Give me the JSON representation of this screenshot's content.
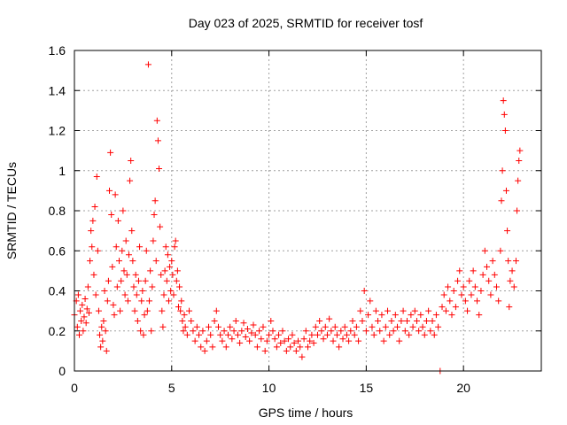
{
  "chart_data": {
    "type": "scatter",
    "title": "Day 023 of 2025, SRMTID for receiver tosf",
    "xlabel": "GPS time / hours",
    "ylabel": "SRMTID / TECUs",
    "xlim": [
      0,
      24
    ],
    "ylim": [
      0,
      1.6
    ],
    "xticks": [
      "0",
      "5",
      "10",
      "15",
      "20"
    ],
    "yticks": [
      "0",
      "0.2",
      "0.4",
      "0.6",
      "0.8",
      "1",
      "1.2",
      "1.4",
      "1.6"
    ],
    "grid": true,
    "marker": "+",
    "color": "#ff0000",
    "series": [
      {
        "name": "SRMTID",
        "points": [
          [
            0.0,
            0.28
          ],
          [
            0.1,
            0.35
          ],
          [
            0.15,
            0.22
          ],
          [
            0.2,
            0.38
          ],
          [
            0.25,
            0.18
          ],
          [
            0.3,
            0.3
          ],
          [
            0.35,
            0.25
          ],
          [
            0.4,
            0.33
          ],
          [
            0.45,
            0.2
          ],
          [
            0.5,
            0.27
          ],
          [
            0.55,
            0.36
          ],
          [
            0.6,
            0.24
          ],
          [
            0.65,
            0.31
          ],
          [
            0.7,
            0.42
          ],
          [
            0.75,
            0.29
          ],
          [
            0.8,
            0.55
          ],
          [
            0.85,
            0.7
          ],
          [
            0.9,
            0.62
          ],
          [
            0.95,
            0.75
          ],
          [
            1.0,
            0.48
          ],
          [
            1.05,
            0.82
          ],
          [
            1.1,
            0.38
          ],
          [
            1.15,
            0.97
          ],
          [
            1.2,
            0.6
          ],
          [
            1.25,
            0.3
          ],
          [
            1.3,
            0.18
          ],
          [
            1.35,
            0.12
          ],
          [
            1.4,
            0.22
          ],
          [
            1.45,
            0.15
          ],
          [
            1.5,
            0.25
          ],
          [
            1.55,
            0.4
          ],
          [
            1.6,
            0.2
          ],
          [
            1.65,
            0.1
          ],
          [
            1.7,
            0.35
          ],
          [
            1.75,
            0.45
          ],
          [
            1.8,
            0.9
          ],
          [
            1.85,
            1.09
          ],
          [
            1.9,
            0.78
          ],
          [
            1.95,
            0.52
          ],
          [
            2.0,
            0.33
          ],
          [
            2.05,
            0.28
          ],
          [
            2.1,
            0.88
          ],
          [
            2.15,
            0.62
          ],
          [
            2.2,
            0.42
          ],
          [
            2.25,
            0.75
          ],
          [
            2.3,
            0.55
          ],
          [
            2.35,
            0.3
          ],
          [
            2.4,
            0.45
          ],
          [
            2.45,
            0.6
          ],
          [
            2.5,
            0.8
          ],
          [
            2.55,
            0.5
          ],
          [
            2.6,
            0.38
          ],
          [
            2.65,
            0.65
          ],
          [
            2.7,
            0.48
          ],
          [
            2.75,
            0.35
          ],
          [
            2.8,
            0.58
          ],
          [
            2.85,
            0.95
          ],
          [
            2.9,
            1.05
          ],
          [
            2.95,
            0.7
          ],
          [
            3.0,
            0.55
          ],
          [
            3.05,
            0.42
          ],
          [
            3.1,
            0.3
          ],
          [
            3.15,
            0.48
          ],
          [
            3.2,
            0.38
          ],
          [
            3.25,
            0.25
          ],
          [
            3.3,
            0.45
          ],
          [
            3.35,
            0.62
          ],
          [
            3.4,
            0.2
          ],
          [
            3.45,
            0.35
          ],
          [
            3.5,
            0.4
          ],
          [
            3.55,
            0.18
          ],
          [
            3.6,
            0.28
          ],
          [
            3.65,
            0.45
          ],
          [
            3.7,
            0.6
          ],
          [
            3.75,
            0.3
          ],
          [
            3.8,
            1.53
          ],
          [
            3.85,
            0.35
          ],
          [
            3.9,
            0.5
          ],
          [
            3.95,
            0.2
          ],
          [
            4.0,
            0.42
          ],
          [
            4.05,
            0.65
          ],
          [
            4.1,
            0.78
          ],
          [
            4.15,
            0.85
          ],
          [
            4.2,
            0.55
          ],
          [
            4.25,
            1.25
          ],
          [
            4.3,
            1.15
          ],
          [
            4.35,
            1.01
          ],
          [
            4.4,
            0.72
          ],
          [
            4.45,
            0.48
          ],
          [
            4.5,
            0.3
          ],
          [
            4.55,
            0.22
          ],
          [
            4.6,
            0.38
          ],
          [
            4.65,
            0.5
          ],
          [
            4.7,
            0.62
          ],
          [
            4.75,
            0.45
          ],
          [
            4.8,
            0.58
          ],
          [
            4.85,
            0.35
          ],
          [
            4.9,
            0.52
          ],
          [
            4.95,
            0.4
          ],
          [
            5.0,
            0.55
          ],
          [
            5.05,
            0.48
          ],
          [
            5.1,
            0.38
          ],
          [
            5.15,
            0.62
          ],
          [
            5.2,
            0.65
          ],
          [
            5.25,
            0.45
          ],
          [
            5.3,
            0.5
          ],
          [
            5.35,
            0.32
          ],
          [
            5.4,
            0.42
          ],
          [
            5.45,
            0.3
          ],
          [
            5.5,
            0.35
          ],
          [
            5.55,
            0.25
          ],
          [
            5.6,
            0.2
          ],
          [
            5.65,
            0.28
          ],
          [
            5.7,
            0.22
          ],
          [
            5.8,
            0.18
          ],
          [
            5.9,
            0.3
          ],
          [
            6.0,
            0.25
          ],
          [
            6.1,
            0.2
          ],
          [
            6.2,
            0.15
          ],
          [
            6.3,
            0.22
          ],
          [
            6.4,
            0.18
          ],
          [
            6.5,
            0.12
          ],
          [
            6.6,
            0.2
          ],
          [
            6.7,
            0.1
          ],
          [
            6.8,
            0.15
          ],
          [
            6.9,
            0.22
          ],
          [
            7.0,
            0.18
          ],
          [
            7.1,
            0.12
          ],
          [
            7.2,
            0.25
          ],
          [
            7.3,
            0.3
          ],
          [
            7.4,
            0.22
          ],
          [
            7.5,
            0.18
          ],
          [
            7.6,
            0.15
          ],
          [
            7.7,
            0.2
          ],
          [
            7.8,
            0.12
          ],
          [
            7.9,
            0.18
          ],
          [
            8.0,
            0.22
          ],
          [
            8.1,
            0.16
          ],
          [
            8.2,
            0.2
          ],
          [
            8.3,
            0.25
          ],
          [
            8.4,
            0.18
          ],
          [
            8.5,
            0.14
          ],
          [
            8.6,
            0.2
          ],
          [
            8.7,
            0.24
          ],
          [
            8.8,
            0.17
          ],
          [
            8.9,
            0.21
          ],
          [
            9.0,
            0.15
          ],
          [
            9.1,
            0.19
          ],
          [
            9.2,
            0.23
          ],
          [
            9.3,
            0.18
          ],
          [
            9.4,
            0.12
          ],
          [
            9.5,
            0.2
          ],
          [
            9.6,
            0.16
          ],
          [
            9.7,
            0.22
          ],
          [
            9.8,
            0.1
          ],
          [
            9.9,
            0.15
          ],
          [
            10.0,
            0.18
          ],
          [
            10.1,
            0.25
          ],
          [
            10.2,
            0.2
          ],
          [
            10.3,
            0.16
          ],
          [
            10.4,
            0.12
          ],
          [
            10.5,
            0.18
          ],
          [
            10.6,
            0.14
          ],
          [
            10.7,
            0.2
          ],
          [
            10.8,
            0.15
          ],
          [
            10.9,
            0.1
          ],
          [
            11.0,
            0.16
          ],
          [
            11.1,
            0.12
          ],
          [
            11.2,
            0.18
          ],
          [
            11.3,
            0.14
          ],
          [
            11.4,
            0.1
          ],
          [
            11.5,
            0.15
          ],
          [
            11.6,
            0.12
          ],
          [
            11.7,
            0.07
          ],
          [
            11.8,
            0.16
          ],
          [
            11.9,
            0.2
          ],
          [
            12.0,
            0.12
          ],
          [
            12.1,
            0.15
          ],
          [
            12.2,
            0.18
          ],
          [
            12.3,
            0.14
          ],
          [
            12.4,
            0.22
          ],
          [
            12.5,
            0.18
          ],
          [
            12.6,
            0.25
          ],
          [
            12.7,
            0.2
          ],
          [
            12.8,
            0.16
          ],
          [
            12.9,
            0.22
          ],
          [
            13.0,
            0.18
          ],
          [
            13.1,
            0.26
          ],
          [
            13.2,
            0.2
          ],
          [
            13.3,
            0.15
          ],
          [
            13.4,
            0.22
          ],
          [
            13.5,
            0.18
          ],
          [
            13.6,
            0.12
          ],
          [
            13.7,
            0.2
          ],
          [
            13.8,
            0.16
          ],
          [
            13.9,
            0.22
          ],
          [
            14.0,
            0.18
          ],
          [
            14.1,
            0.15
          ],
          [
            14.2,
            0.2
          ],
          [
            14.3,
            0.25
          ],
          [
            14.4,
            0.18
          ],
          [
            14.5,
            0.22
          ],
          [
            14.6,
            0.15
          ],
          [
            14.7,
            0.3
          ],
          [
            14.8,
            0.25
          ],
          [
            14.9,
            0.4
          ],
          [
            15.0,
            0.2
          ],
          [
            15.1,
            0.28
          ],
          [
            15.2,
            0.35
          ],
          [
            15.3,
            0.22
          ],
          [
            15.4,
            0.18
          ],
          [
            15.5,
            0.3
          ],
          [
            15.6,
            0.25
          ],
          [
            15.7,
            0.2
          ],
          [
            15.8,
            0.28
          ],
          [
            15.9,
            0.15
          ],
          [
            16.0,
            0.22
          ],
          [
            16.1,
            0.3
          ],
          [
            16.2,
            0.18
          ],
          [
            16.3,
            0.25
          ],
          [
            16.4,
            0.2
          ],
          [
            16.5,
            0.28
          ],
          [
            16.6,
            0.22
          ],
          [
            16.7,
            0.15
          ],
          [
            16.8,
            0.25
          ],
          [
            16.9,
            0.3
          ],
          [
            17.0,
            0.2
          ],
          [
            17.1,
            0.25
          ],
          [
            17.2,
            0.18
          ],
          [
            17.3,
            0.28
          ],
          [
            17.4,
            0.22
          ],
          [
            17.5,
            0.3
          ],
          [
            17.6,
            0.25
          ],
          [
            17.7,
            0.2
          ],
          [
            17.8,
            0.28
          ],
          [
            17.9,
            0.22
          ],
          [
            18.0,
            0.18
          ],
          [
            18.1,
            0.25
          ],
          [
            18.2,
            0.3
          ],
          [
            18.3,
            0.2
          ],
          [
            18.4,
            0.25
          ],
          [
            18.5,
            0.18
          ],
          [
            18.6,
            0.28
          ],
          [
            18.7,
            0.22
          ],
          [
            18.8,
            0.0
          ],
          [
            18.9,
            0.32
          ],
          [
            19.0,
            0.38
          ],
          [
            19.1,
            0.3
          ],
          [
            19.2,
            0.42
          ],
          [
            19.3,
            0.35
          ],
          [
            19.4,
            0.28
          ],
          [
            19.5,
            0.4
          ],
          [
            19.6,
            0.32
          ],
          [
            19.7,
            0.45
          ],
          [
            19.8,
            0.5
          ],
          [
            19.9,
            0.38
          ],
          [
            20.0,
            0.42
          ],
          [
            20.1,
            0.35
          ],
          [
            20.2,
            0.3
          ],
          [
            20.3,
            0.45
          ],
          [
            20.4,
            0.38
          ],
          [
            20.5,
            0.5
          ],
          [
            20.6,
            0.42
          ],
          [
            20.7,
            0.35
          ],
          [
            20.8,
            0.28
          ],
          [
            20.9,
            0.4
          ],
          [
            21.0,
            0.48
          ],
          [
            21.1,
            0.6
          ],
          [
            21.2,
            0.52
          ],
          [
            21.3,
            0.45
          ],
          [
            21.4,
            0.38
          ],
          [
            21.5,
            0.55
          ],
          [
            21.6,
            0.48
          ],
          [
            21.7,
            0.42
          ],
          [
            21.8,
            0.35
          ],
          [
            21.9,
            0.6
          ],
          [
            21.95,
            0.85
          ],
          [
            22.0,
            1.0
          ],
          [
            22.05,
            1.35
          ],
          [
            22.1,
            1.28
          ],
          [
            22.15,
            1.2
          ],
          [
            22.2,
            0.9
          ],
          [
            22.25,
            0.7
          ],
          [
            22.3,
            0.55
          ],
          [
            22.35,
            0.32
          ],
          [
            22.4,
            0.45
          ],
          [
            22.5,
            0.5
          ],
          [
            22.6,
            0.42
          ],
          [
            22.7,
            0.55
          ],
          [
            22.75,
            0.8
          ],
          [
            22.8,
            0.95
          ],
          [
            22.85,
            1.05
          ],
          [
            22.9,
            1.1
          ]
        ]
      }
    ]
  }
}
